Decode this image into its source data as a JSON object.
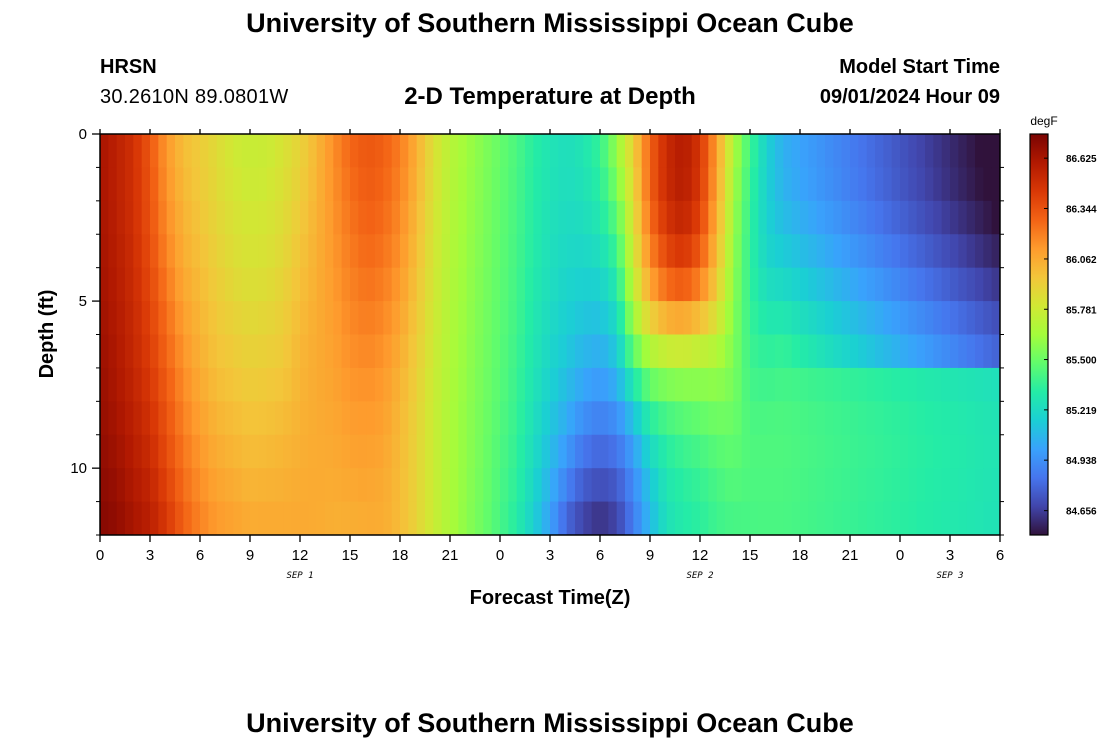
{
  "header": {
    "title": "University of Southern Mississippi Ocean Cube",
    "station_name": "HRSN",
    "station_coords": "30.2610N  89.0801W",
    "plot_title": "2-D Temperature at Depth",
    "start_time_label": "Model Start Time",
    "start_time_value": "09/01/2024 Hour 09"
  },
  "footer": {
    "title": "University of Southern Mississippi Ocean Cube"
  },
  "colors": {
    "colormap": [
      "#30123b",
      "#4145ab",
      "#4675ed",
      "#39a2fc",
      "#1bcfd4",
      "#24eca6",
      "#61fc6c",
      "#a4fc3b",
      "#d1e834",
      "#f3c63a",
      "#fe9b2d",
      "#f36315",
      "#d93806",
      "#b11901",
      "#7a0402"
    ]
  },
  "chart_data": {
    "type": "heatmap",
    "title": "2-D Temperature at Depth",
    "xlabel": "Forecast Time(Z)",
    "ylabel": "Depth (ft)",
    "xlim": [
      0,
      54
    ],
    "ylim": [
      0,
      12
    ],
    "x_ticks": [
      0,
      3,
      6,
      9,
      12,
      15,
      18,
      21,
      24,
      27,
      30,
      33,
      36,
      39,
      42,
      45,
      48,
      51,
      54
    ],
    "x_tick_labels": [
      "0",
      "3",
      "6",
      "9",
      "12",
      "15",
      "18",
      "21",
      "0",
      "3",
      "6",
      "9",
      "12",
      "15",
      "18",
      "21",
      "0",
      "3",
      "6"
    ],
    "date_labels": [
      {
        "x": 12,
        "label": "SEP 1"
      },
      {
        "x": 36,
        "label": "SEP 2"
      },
      {
        "x": 51,
        "label": "SEP 3"
      }
    ],
    "y_ticks": [
      0,
      5,
      10
    ],
    "y_tick_labels": [
      "0",
      "5",
      "10"
    ],
    "y_minor_ticks": [
      1,
      2,
      3,
      4,
      6,
      7,
      8,
      9,
      11,
      12
    ],
    "depths": [
      0,
      1,
      2,
      3,
      4,
      5,
      6,
      7,
      8,
      9,
      10,
      11,
      12
    ],
    "colorbar": {
      "units": "degF",
      "vmin": 84.52,
      "vmax": 86.76,
      "tick_values": [
        84.656,
        84.938,
        85.219,
        85.5,
        85.781,
        86.062,
        86.344,
        86.625
      ],
      "tick_labels": [
        "84.656",
        "84.938",
        "85.219",
        "85.500",
        "85.781",
        "86.062",
        "86.344",
        "86.625"
      ]
    },
    "temperature_columns_by_hour": [
      [
        86.63,
        86.63,
        86.63,
        86.64,
        86.64,
        86.65,
        86.66,
        86.67,
        86.68,
        86.69,
        86.7,
        86.72,
        86.73
      ],
      [
        86.56,
        86.56,
        86.56,
        86.57,
        86.58,
        86.59,
        86.6,
        86.61,
        86.62,
        86.64,
        86.66,
        86.68,
        86.7
      ],
      [
        86.48,
        86.48,
        86.48,
        86.49,
        86.5,
        86.51,
        86.52,
        86.53,
        86.55,
        86.57,
        86.59,
        86.61,
        86.64
      ],
      [
        86.32,
        86.33,
        86.34,
        86.35,
        86.37,
        86.39,
        86.41,
        86.43,
        86.46,
        86.49,
        86.52,
        86.55,
        86.58
      ],
      [
        86.12,
        86.13,
        86.15,
        86.17,
        86.2,
        86.23,
        86.26,
        86.29,
        86.32,
        86.35,
        86.38,
        86.42,
        86.46
      ],
      [
        85.99,
        86.0,
        86.02,
        86.04,
        86.06,
        86.09,
        86.12,
        86.15,
        86.18,
        86.21,
        86.24,
        86.27,
        86.31
      ],
      [
        85.93,
        85.94,
        85.95,
        85.97,
        85.99,
        86.01,
        86.03,
        86.05,
        86.08,
        86.11,
        86.14,
        86.17,
        86.2
      ],
      [
        85.86,
        85.87,
        85.88,
        85.9,
        85.92,
        85.94,
        85.96,
        85.98,
        86.01,
        86.04,
        86.07,
        86.1,
        86.13
      ],
      [
        85.79,
        85.8,
        85.82,
        85.84,
        85.86,
        85.89,
        85.92,
        85.95,
        85.98,
        86.01,
        86.04,
        86.07,
        86.1
      ],
      [
        85.76,
        85.77,
        85.79,
        85.81,
        85.83,
        85.86,
        85.89,
        85.92,
        85.95,
        85.98,
        86.01,
        86.04,
        86.07
      ],
      [
        85.77,
        85.78,
        85.8,
        85.82,
        85.84,
        85.87,
        85.9,
        85.93,
        85.96,
        85.99,
        86.02,
        86.05,
        86.07
      ],
      [
        85.82,
        85.83,
        85.85,
        85.87,
        85.89,
        85.91,
        85.93,
        85.95,
        85.98,
        86.01,
        86.03,
        86.05,
        86.07
      ],
      [
        85.9,
        85.91,
        85.93,
        85.95,
        85.97,
        85.99,
        86.01,
        86.02,
        86.03,
        86.04,
        86.05,
        86.06,
        86.07
      ],
      [
        86.02,
        86.02,
        86.03,
        86.04,
        86.05,
        86.05,
        86.06,
        86.06,
        86.06,
        86.06,
        86.06,
        86.06,
        86.06
      ],
      [
        86.16,
        86.15,
        86.14,
        86.13,
        86.12,
        86.11,
        86.1,
        86.09,
        86.08,
        86.07,
        86.06,
        86.05,
        86.04
      ],
      [
        86.28,
        86.26,
        86.24,
        86.22,
        86.2,
        86.18,
        86.16,
        86.14,
        86.12,
        86.1,
        86.08,
        86.06,
        86.04
      ],
      [
        86.33,
        86.32,
        86.3,
        86.28,
        86.25,
        86.22,
        86.19,
        86.16,
        86.13,
        86.11,
        86.09,
        86.07,
        86.05
      ],
      [
        86.3,
        86.29,
        86.27,
        86.25,
        86.22,
        86.19,
        86.16,
        86.13,
        86.11,
        86.09,
        86.07,
        86.06,
        86.05
      ],
      [
        86.21,
        86.2,
        86.18,
        86.16,
        86.13,
        86.1,
        86.07,
        86.04,
        86.02,
        86.01,
        86.0,
        86.0,
        86.0
      ],
      [
        86.05,
        86.04,
        86.02,
        86.0,
        85.98,
        85.96,
        85.94,
        85.92,
        85.91,
        85.9,
        85.9,
        85.9,
        85.9
      ],
      [
        85.85,
        85.84,
        85.83,
        85.82,
        85.81,
        85.8,
        85.79,
        85.78,
        85.77,
        85.77,
        85.77,
        85.77,
        85.77
      ],
      [
        85.71,
        85.71,
        85.7,
        85.7,
        85.69,
        85.69,
        85.68,
        85.68,
        85.67,
        85.67,
        85.67,
        85.67,
        85.67
      ],
      [
        85.63,
        85.63,
        85.62,
        85.62,
        85.61,
        85.61,
        85.6,
        85.6,
        85.59,
        85.59,
        85.59,
        85.58,
        85.58
      ],
      [
        85.56,
        85.56,
        85.55,
        85.55,
        85.54,
        85.54,
        85.53,
        85.53,
        85.52,
        85.52,
        85.51,
        85.51,
        85.5
      ],
      [
        85.49,
        85.49,
        85.48,
        85.48,
        85.47,
        85.47,
        85.46,
        85.46,
        85.45,
        85.44,
        85.43,
        85.42,
        85.41
      ],
      [
        85.42,
        85.42,
        85.41,
        85.41,
        85.4,
        85.4,
        85.39,
        85.38,
        85.37,
        85.36,
        85.35,
        85.33,
        85.31
      ],
      [
        85.33,
        85.33,
        85.32,
        85.32,
        85.31,
        85.3,
        85.29,
        85.28,
        85.26,
        85.24,
        85.22,
        85.19,
        85.16
      ],
      [
        85.27,
        85.27,
        85.26,
        85.25,
        85.24,
        85.23,
        85.21,
        85.19,
        85.16,
        85.12,
        85.08,
        85.03,
        84.98
      ],
      [
        85.24,
        85.24,
        85.23,
        85.22,
        85.2,
        85.18,
        85.15,
        85.12,
        85.07,
        85.01,
        84.93,
        84.84,
        84.75
      ],
      [
        85.28,
        85.27,
        85.25,
        85.22,
        85.19,
        85.15,
        85.1,
        85.05,
        84.98,
        84.89,
        84.8,
        84.72,
        84.64
      ],
      [
        85.37,
        85.35,
        85.31,
        85.27,
        85.21,
        85.15,
        85.08,
        85.01,
        84.93,
        84.84,
        84.75,
        84.67,
        84.58
      ],
      [
        85.62,
        85.58,
        85.5,
        85.42,
        85.34,
        85.26,
        85.18,
        85.1,
        84.99,
        84.88,
        84.79,
        84.71,
        84.65
      ],
      [
        85.92,
        85.9,
        85.86,
        85.82,
        85.77,
        85.7,
        85.57,
        85.38,
        85.19,
        85.04,
        84.95,
        84.89,
        84.85
      ],
      [
        86.28,
        86.3,
        86.28,
        86.22,
        86.14,
        86.02,
        85.8,
        85.58,
        85.4,
        85.26,
        85.16,
        85.1,
        85.07
      ],
      [
        86.5,
        86.52,
        86.5,
        86.44,
        86.34,
        86.18,
        85.9,
        85.63,
        85.47,
        85.36,
        85.3,
        85.27,
        85.25
      ],
      [
        86.59,
        86.6,
        86.57,
        86.51,
        86.4,
        86.22,
        85.92,
        85.65,
        85.5,
        85.41,
        85.35,
        85.32,
        85.3
      ],
      [
        86.45,
        86.46,
        86.43,
        86.37,
        86.27,
        86.12,
        85.86,
        85.63,
        85.52,
        85.44,
        85.38,
        85.35,
        85.33
      ],
      [
        86.11,
        86.1,
        86.07,
        86.03,
        85.97,
        85.9,
        85.76,
        85.63,
        85.55,
        85.48,
        85.43,
        85.4,
        85.38
      ],
      [
        85.69,
        85.67,
        85.64,
        85.62,
        85.6,
        85.58,
        85.56,
        85.55,
        85.52,
        85.49,
        85.46,
        85.43,
        85.4
      ],
      [
        85.4,
        85.38,
        85.36,
        85.35,
        85.35,
        85.36,
        85.37,
        85.39,
        85.41,
        85.43,
        85.43,
        85.42,
        85.41
      ],
      [
        85.18,
        85.17,
        85.17,
        85.18,
        85.21,
        85.26,
        85.32,
        85.37,
        85.41,
        85.43,
        85.43,
        85.42,
        85.42
      ],
      [
        85.05,
        85.05,
        85.07,
        85.12,
        85.18,
        85.25,
        85.33,
        85.39,
        85.42,
        85.43,
        85.43,
        85.42,
        85.42
      ]
    ]
  }
}
